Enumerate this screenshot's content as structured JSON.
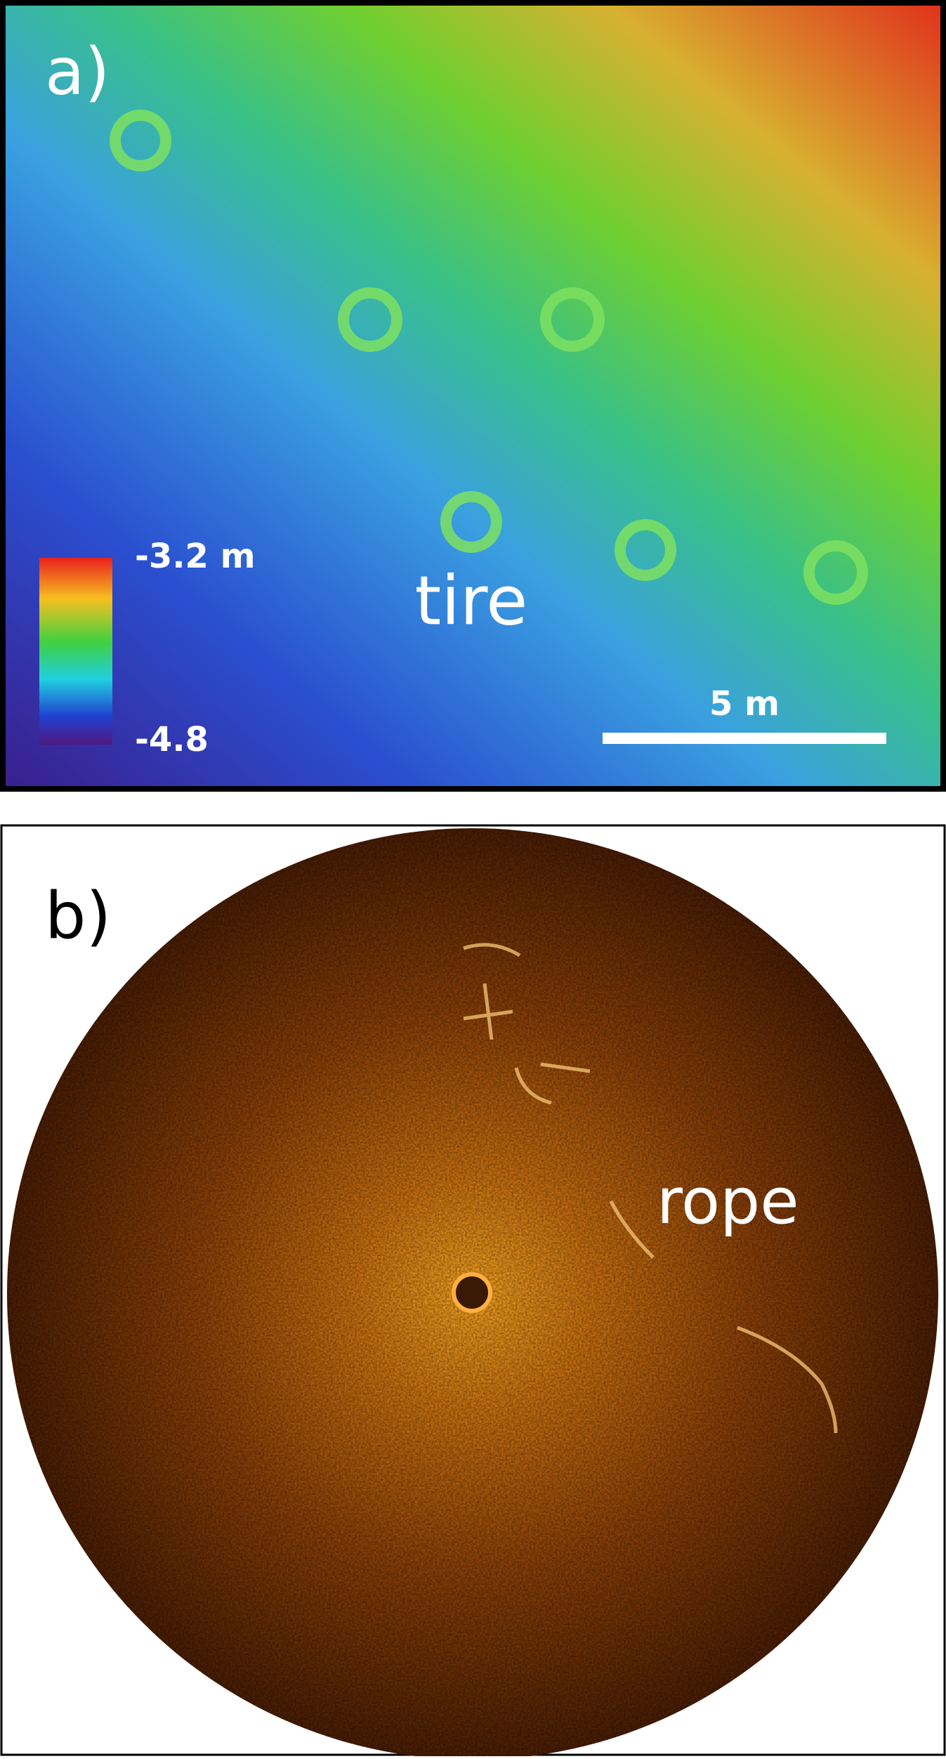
{
  "panel_a": {
    "label": "a)",
    "colorbar": {
      "max_label": "-3.2 m",
      "min_label": "-4.8"
    },
    "annotation": "tire",
    "scale_bar": "5 m"
  },
  "panel_b": {
    "label": "b)",
    "annotation": "rope"
  }
}
